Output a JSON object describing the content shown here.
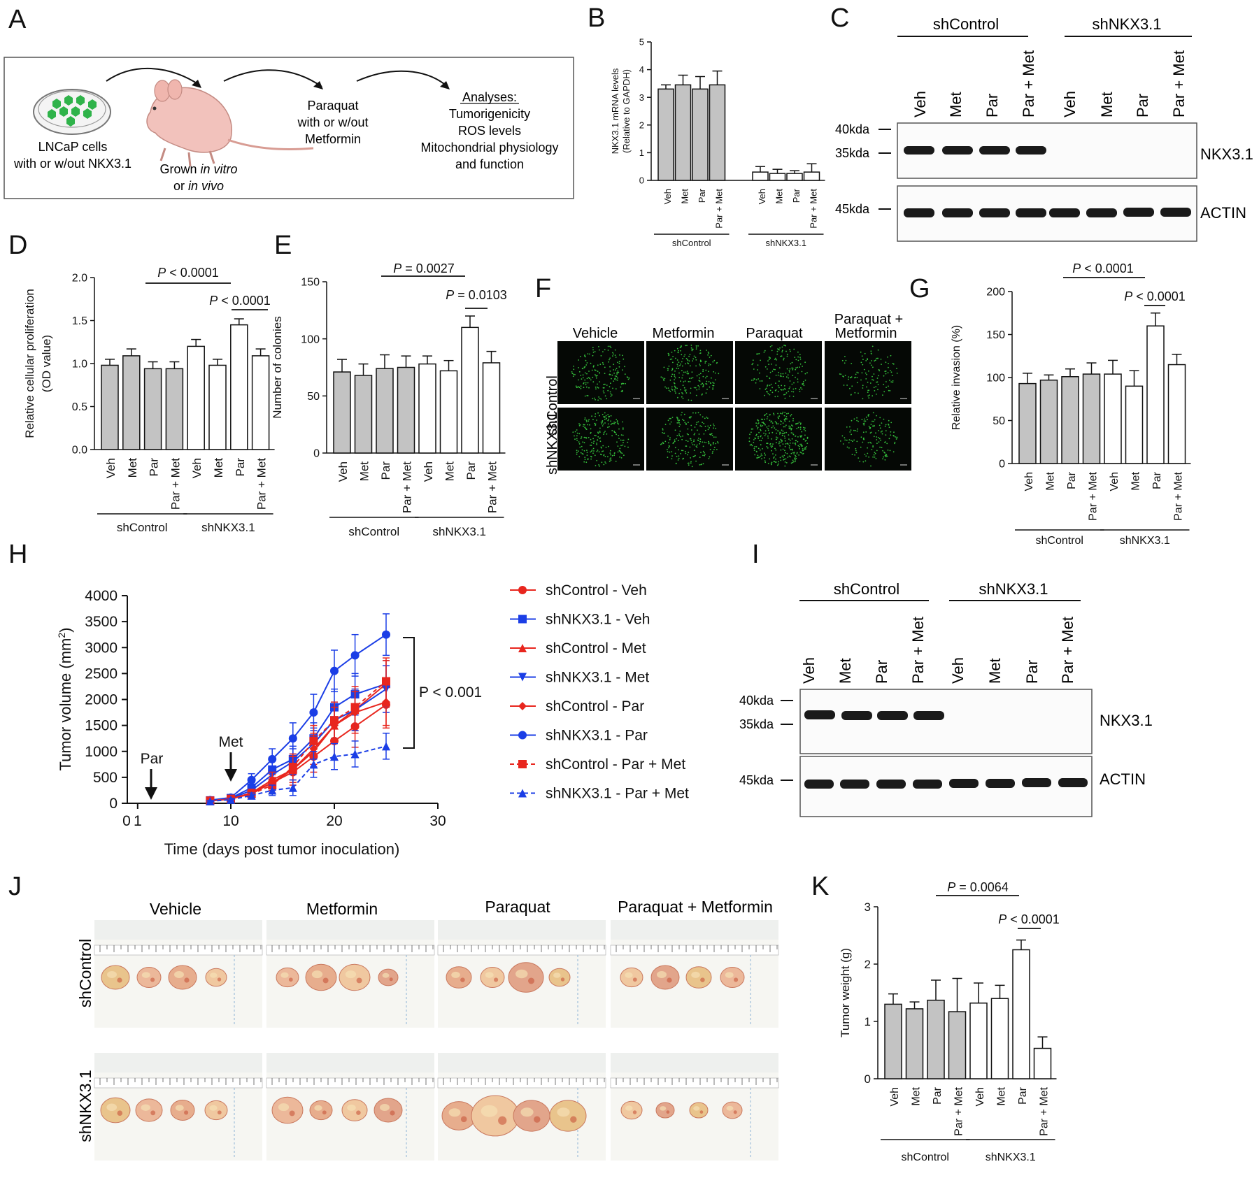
{
  "panel_letters": [
    "A",
    "B",
    "C",
    "D",
    "E",
    "F",
    "G",
    "H",
    "I",
    "J",
    "K"
  ],
  "groups": {
    "control": "shControl",
    "knockdown": "shNKX3.1"
  },
  "treatments_short": [
    "Veh",
    "Met",
    "Par",
    "Par + Met"
  ],
  "bar_fill": {
    "control": "#c3c3c3",
    "knockdown": "#ffffff"
  },
  "panel_a": {
    "cells_label_1": "LNCaP cells",
    "cells_label_2": "with or w/out NKX3.1",
    "grown_label_1": "Grown",
    "grown_label_1_em": "in vitro",
    "grown_label_2": "or",
    "grown_label_2_em": "in vivo",
    "treat_label_1": "Paraquat",
    "treat_label_2": "with or w/out",
    "treat_label_3": "Metformin",
    "analyses_title": "Analyses:",
    "analyses_items": [
      "Tumorigenicity",
      "ROS levels",
      "Mitochondrial physiology",
      "and function"
    ],
    "cell_color": "#2fb34a",
    "mouse_color": "#f2c2bc"
  },
  "blots": {
    "C": {
      "ladder": [
        "40kda",
        "35kda",
        "45kda"
      ],
      "proteins": [
        "NKX3.1",
        "ACTIN"
      ]
    },
    "I": {
      "ladder": [
        "40kda",
        "35kda",
        "45kda"
      ],
      "proteins": [
        "NKX3.1",
        "ACTIN"
      ]
    }
  },
  "panel_f": {
    "columns": [
      "Vehicle",
      "Metformin",
      "Paraquat",
      "Paraquat +",
      "Metformin"
    ],
    "rows": [
      "shControl",
      "shNKX3.1"
    ],
    "dot_color": "#35c03c"
  },
  "panel_j": {
    "columns": [
      "Vehicle",
      "Metformin",
      "Paraquat",
      "Paraquat + Metformin"
    ],
    "rows": [
      "shControl",
      "shNKX3.1"
    ]
  },
  "chart_data": [
    {
      "panel": "B",
      "type": "bar",
      "categories": [
        "Veh",
        "Met",
        "Par",
        "Par + Met",
        "Veh",
        "Met",
        "Par",
        "Par + Met"
      ],
      "values": [
        3.3,
        3.45,
        3.3,
        3.45,
        0.3,
        0.25,
        0.25,
        0.3
      ],
      "errors": [
        0.15,
        0.35,
        0.45,
        0.5,
        0.2,
        0.15,
        0.1,
        0.3
      ],
      "ylabel_1": "NKX3.1 mRNA levels",
      "ylabel_2": "(Relative to GAPDH)",
      "ylim": [
        0,
        5
      ],
      "yticks": [
        "0",
        "1",
        "2",
        "3",
        "4",
        "5"
      ],
      "group_labels": [
        "shControl",
        "shNKX3.1"
      ]
    },
    {
      "panel": "D",
      "type": "bar",
      "categories": [
        "Veh",
        "Met",
        "Par",
        "Par + Met",
        "Veh",
        "Met",
        "Par",
        "Par + Met"
      ],
      "values": [
        0.98,
        1.09,
        0.94,
        0.94,
        1.2,
        0.98,
        1.45,
        1.09
      ],
      "errors": [
        0.07,
        0.08,
        0.08,
        0.08,
        0.08,
        0.07,
        0.07,
        0.08
      ],
      "ylabel_1": "Relative cellular proliferation",
      "ylabel_2": "(OD value)",
      "ylim": [
        0,
        2.0
      ],
      "yticks": [
        "0.0",
        "0.5",
        "1.0",
        "1.5",
        "2.0"
      ],
      "group_labels": [
        "shControl",
        "shNKX3.1"
      ],
      "annotations": [
        "P < 0.0001",
        "P < 0.0001"
      ]
    },
    {
      "panel": "E",
      "type": "bar",
      "categories": [
        "Veh",
        "Met",
        "Par",
        "Par + Met",
        "Veh",
        "Met",
        "Par",
        "Par + Met"
      ],
      "values": [
        71,
        68,
        74,
        75,
        78,
        72,
        110,
        79
      ],
      "errors": [
        11,
        10,
        12,
        10,
        7,
        9,
        10,
        10
      ],
      "ylabel_1": "Number of colonies",
      "ylim": [
        0,
        150
      ],
      "yticks": [
        "0",
        "50",
        "100",
        "150"
      ],
      "group_labels": [
        "shControl",
        "shNKX3.1"
      ],
      "annotations": [
        "P = 0.0027",
        "P = 0.0103"
      ]
    },
    {
      "panel": "G",
      "type": "bar",
      "categories": [
        "Veh",
        "Met",
        "Par",
        "Par + Met",
        "Veh",
        "Met",
        "Par",
        "Par + Met"
      ],
      "values": [
        93,
        97,
        101,
        104,
        104,
        90,
        160,
        115
      ],
      "errors": [
        12,
        6,
        9,
        13,
        16,
        18,
        15,
        12
      ],
      "ylabel_1": "Relative invasion (%)",
      "ylim": [
        0,
        200
      ],
      "yticks": [
        "0",
        "50",
        "100",
        "150",
        "200"
      ],
      "group_labels": [
        "shControl",
        "shNKX3.1"
      ],
      "annotations": [
        "P < 0.0001",
        "P < 0.0001"
      ]
    },
    {
      "panel": "K",
      "type": "bar",
      "categories": [
        "Veh",
        "Met",
        "Par",
        "Par + Met",
        "Veh",
        "Met",
        "Par",
        "Par + Met"
      ],
      "values": [
        1.3,
        1.22,
        1.37,
        1.17,
        1.32,
        1.4,
        2.25,
        0.53
      ],
      "errors": [
        0.18,
        0.12,
        0.35,
        0.58,
        0.35,
        0.23,
        0.17,
        0.2
      ],
      "ylabel_1": "Tumor weight (g)",
      "ylim": [
        0,
        3
      ],
      "yticks": [
        "0",
        "1",
        "2",
        "3"
      ],
      "group_labels": [
        "shControl",
        "shNKX3.1"
      ],
      "annotations": [
        "P = 0.0064",
        "P < 0.0001"
      ]
    },
    {
      "panel": "H",
      "type": "line",
      "x": [
        8,
        10,
        12,
        14,
        16,
        18,
        20,
        22,
        25
      ],
      "xlabel": "Time (days post tumor inoculation)",
      "ylabel": "Tumor volume (mm",
      "ylabel_sup": "2",
      "ylabel_end": ")",
      "xlim": [
        0,
        30
      ],
      "ylim": [
        0,
        4000
      ],
      "xticks": [
        "0",
        "1",
        "10",
        "20",
        "30"
      ],
      "yticks": [
        "0",
        "500",
        "1000",
        "1500",
        "2000",
        "2500",
        "3000",
        "3500",
        "4000"
      ],
      "annotations": [
        "Par",
        "Met",
        "P < 0.001"
      ],
      "series": [
        {
          "name": "shControl - Veh",
          "color": "#e8261e",
          "marker": "circle",
          "dash": false,
          "values": [
            50,
            90,
            180,
            400,
            600,
            900,
            1200,
            1480,
            1900
          ],
          "errors": [
            20,
            30,
            60,
            150,
            250,
            300,
            350,
            400,
            450
          ]
        },
        {
          "name": "shNKX3.1 - Veh",
          "color": "#1b3ee6",
          "marker": "square",
          "dash": false,
          "values": [
            55,
            100,
            300,
            650,
            850,
            1250,
            1850,
            2100,
            2300
          ],
          "errors": [
            20,
            30,
            100,
            180,
            250,
            300,
            350,
            400,
            450
          ]
        },
        {
          "name": "shControl - Met",
          "color": "#e8261e",
          "marker": "triangle",
          "dash": false,
          "values": [
            45,
            80,
            200,
            400,
            650,
            1000,
            1500,
            1800,
            2300
          ],
          "errors": [
            20,
            30,
            60,
            150,
            250,
            300,
            350,
            400,
            450
          ]
        },
        {
          "name": "shNKX3.1 - Met",
          "color": "#1b3ee6",
          "marker": "triangle-down",
          "dash": false,
          "values": [
            50,
            90,
            250,
            550,
            800,
            1150,
            1600,
            1800,
            2200
          ],
          "errors": [
            20,
            30,
            80,
            160,
            250,
            300,
            350,
            400,
            450
          ]
        },
        {
          "name": "shControl - Par",
          "color": "#e8261e",
          "marker": "diamond",
          "dash": false,
          "values": [
            50,
            85,
            200,
            450,
            650,
            1050,
            1500,
            1750,
            1950
          ],
          "errors": [
            20,
            30,
            70,
            150,
            250,
            300,
            350,
            400,
            450
          ]
        },
        {
          "name": "shNKX3.1 - Par",
          "color": "#1b3ee6",
          "marker": "circle",
          "dash": false,
          "values": [
            60,
            110,
            450,
            850,
            1250,
            1750,
            2550,
            2850,
            3250
          ],
          "errors": [
            20,
            30,
            120,
            200,
            300,
            350,
            400,
            400,
            400
          ]
        },
        {
          "name": "shControl - Par + Met",
          "color": "#e8261e",
          "marker": "square",
          "dash": true,
          "values": [
            50,
            85,
            180,
            350,
            700,
            1200,
            1600,
            1850,
            2350
          ],
          "errors": [
            20,
            30,
            60,
            150,
            250,
            300,
            350,
            400,
            450
          ]
        },
        {
          "name": "shNKX3.1 - Par + Met",
          "color": "#1b3ee6",
          "marker": "triangle",
          "dash": true,
          "values": [
            40,
            70,
            150,
            250,
            300,
            750,
            900,
            950,
            1100
          ],
          "errors": [
            15,
            25,
            50,
            100,
            150,
            250,
            250,
            250,
            250
          ]
        }
      ]
    }
  ]
}
